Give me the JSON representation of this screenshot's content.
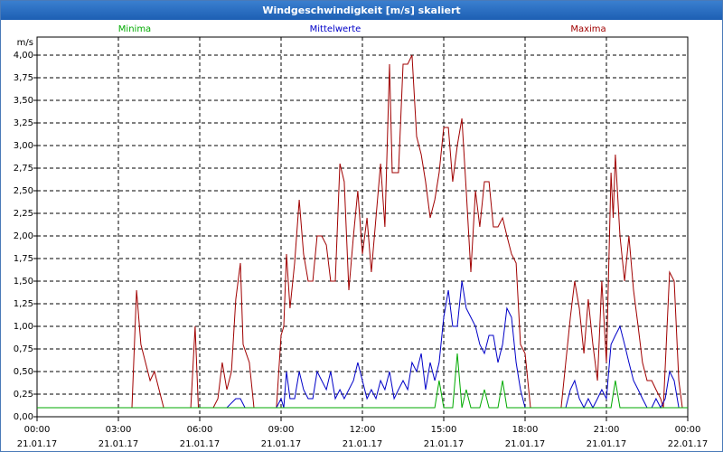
{
  "window": {
    "title": "Windgeschwindigkeit [m/s] skaliert"
  },
  "legend": [
    {
      "name": "Minima",
      "color": "#00aa00"
    },
    {
      "name": "Mittelwerte",
      "color": "#0000c8"
    },
    {
      "name": "Maxima",
      "color": "#a00000"
    }
  ],
  "chart_data": {
    "type": "line",
    "title": "Windgeschwindigkeit [m/s] skaliert",
    "ylabel": "m/s",
    "xlabel": "",
    "ylim": [
      0,
      4.0
    ],
    "xlim_hours": [
      0,
      24
    ],
    "grid": true,
    "legend_position": "top",
    "yticks": [
      "0,00",
      "0,25",
      "0,50",
      "0,75",
      "1,00",
      "1,25",
      "1,50",
      "1,75",
      "2,00",
      "2,25",
      "2,50",
      "2,75",
      "3,00",
      "3,25",
      "3,50",
      "3,75",
      "4,00"
    ],
    "xticks": [
      {
        "time": "00:00",
        "date": "21.01.17"
      },
      {
        "time": "03:00",
        "date": "21.01.17"
      },
      {
        "time": "06:00",
        "date": "21.01.17"
      },
      {
        "time": "09:00",
        "date": "21.01.17"
      },
      {
        "time": "12:00",
        "date": "21.01.17"
      },
      {
        "time": "15:00",
        "date": "21.01.17"
      },
      {
        "time": "18:00",
        "date": "21.01.17"
      },
      {
        "time": "21:00",
        "date": "21.01.17"
      },
      {
        "time": "00:00",
        "date": "22.01.17"
      }
    ],
    "series": [
      {
        "name": "Maxima",
        "color": "#a00000",
        "points": [
          [
            0,
            0.1
          ],
          [
            3.5,
            0.1
          ],
          [
            3.67,
            1.4
          ],
          [
            3.83,
            0.8
          ],
          [
            4.0,
            0.6
          ],
          [
            4.17,
            0.4
          ],
          [
            4.33,
            0.5
          ],
          [
            4.5,
            0.3
          ],
          [
            4.67,
            0.1
          ],
          [
            5.67,
            0.1
          ],
          [
            5.83,
            1.0
          ],
          [
            5.95,
            0.1
          ],
          [
            6.5,
            0.1
          ],
          [
            6.67,
            0.2
          ],
          [
            6.83,
            0.6
          ],
          [
            7.0,
            0.3
          ],
          [
            7.17,
            0.5
          ],
          [
            7.33,
            1.3
          ],
          [
            7.5,
            1.7
          ],
          [
            7.6,
            0.8
          ],
          [
            7.83,
            0.6
          ],
          [
            8.0,
            0.1
          ],
          [
            8.83,
            0.1
          ],
          [
            9.0,
            0.9
          ],
          [
            9.1,
            1.0
          ],
          [
            9.2,
            1.8
          ],
          [
            9.33,
            1.2
          ],
          [
            9.5,
            1.7
          ],
          [
            9.67,
            2.4
          ],
          [
            9.83,
            1.8
          ],
          [
            10.0,
            1.5
          ],
          [
            10.17,
            1.5
          ],
          [
            10.33,
            2.0
          ],
          [
            10.5,
            2.0
          ],
          [
            10.67,
            1.9
          ],
          [
            10.83,
            1.5
          ],
          [
            11.0,
            1.5
          ],
          [
            11.17,
            2.8
          ],
          [
            11.33,
            2.6
          ],
          [
            11.5,
            1.4
          ],
          [
            11.67,
            2.0
          ],
          [
            11.83,
            2.5
          ],
          [
            12.0,
            1.8
          ],
          [
            12.17,
            2.2
          ],
          [
            12.33,
            1.6
          ],
          [
            12.5,
            2.2
          ],
          [
            12.67,
            2.8
          ],
          [
            12.83,
            2.1
          ],
          [
            13.0,
            3.9
          ],
          [
            13.1,
            2.7
          ],
          [
            13.33,
            2.7
          ],
          [
            13.5,
            3.9
          ],
          [
            13.67,
            3.9
          ],
          [
            13.83,
            4.0
          ],
          [
            14.0,
            3.1
          ],
          [
            14.17,
            2.9
          ],
          [
            14.33,
            2.6
          ],
          [
            14.5,
            2.2
          ],
          [
            14.67,
            2.4
          ],
          [
            14.83,
            2.7
          ],
          [
            15.0,
            3.2
          ],
          [
            15.17,
            3.2
          ],
          [
            15.33,
            2.6
          ],
          [
            15.5,
            3.0
          ],
          [
            15.67,
            3.3
          ],
          [
            15.83,
            2.5
          ],
          [
            16.0,
            1.6
          ],
          [
            16.17,
            2.5
          ],
          [
            16.33,
            2.1
          ],
          [
            16.5,
            2.6
          ],
          [
            16.67,
            2.6
          ],
          [
            16.83,
            2.1
          ],
          [
            17.0,
            2.1
          ],
          [
            17.17,
            2.2
          ],
          [
            17.33,
            2.0
          ],
          [
            17.5,
            1.8
          ],
          [
            17.67,
            1.7
          ],
          [
            17.83,
            0.8
          ],
          [
            18.0,
            0.7
          ],
          [
            18.2,
            0.1
          ],
          [
            19.33,
            0.1
          ],
          [
            19.5,
            0.6
          ],
          [
            19.67,
            1.1
          ],
          [
            19.83,
            1.5
          ],
          [
            20.0,
            1.2
          ],
          [
            20.17,
            0.7
          ],
          [
            20.33,
            1.3
          ],
          [
            20.5,
            0.8
          ],
          [
            20.67,
            0.4
          ],
          [
            20.83,
            1.5
          ],
          [
            21.0,
            0.6
          ],
          [
            21.17,
            2.7
          ],
          [
            21.25,
            2.2
          ],
          [
            21.33,
            2.9
          ],
          [
            21.5,
            2.0
          ],
          [
            21.67,
            1.5
          ],
          [
            21.83,
            2.0
          ],
          [
            22.0,
            1.4
          ],
          [
            22.17,
            1.0
          ],
          [
            22.33,
            0.6
          ],
          [
            22.5,
            0.4
          ],
          [
            22.67,
            0.4
          ],
          [
            22.83,
            0.3
          ],
          [
            23.0,
            0.2
          ],
          [
            23.1,
            0.1
          ],
          [
            23.33,
            1.6
          ],
          [
            23.5,
            1.5
          ],
          [
            23.67,
            0.4
          ],
          [
            23.8,
            0.1
          ],
          [
            24.0,
            0.1
          ]
        ]
      },
      {
        "name": "Mittelwerte",
        "color": "#0000c8",
        "points": [
          [
            0,
            0.1
          ],
          [
            7.0,
            0.1
          ],
          [
            7.33,
            0.2
          ],
          [
            7.5,
            0.2
          ],
          [
            7.67,
            0.1
          ],
          [
            8.83,
            0.1
          ],
          [
            9.0,
            0.2
          ],
          [
            9.1,
            0.1
          ],
          [
            9.2,
            0.5
          ],
          [
            9.33,
            0.2
          ],
          [
            9.5,
            0.2
          ],
          [
            9.67,
            0.5
          ],
          [
            9.83,
            0.3
          ],
          [
            10.0,
            0.2
          ],
          [
            10.17,
            0.2
          ],
          [
            10.33,
            0.5
          ],
          [
            10.5,
            0.4
          ],
          [
            10.67,
            0.3
          ],
          [
            10.83,
            0.5
          ],
          [
            11.0,
            0.2
          ],
          [
            11.17,
            0.3
          ],
          [
            11.33,
            0.2
          ],
          [
            11.5,
            0.3
          ],
          [
            11.67,
            0.4
          ],
          [
            11.83,
            0.6
          ],
          [
            12.0,
            0.4
          ],
          [
            12.17,
            0.2
          ],
          [
            12.33,
            0.3
          ],
          [
            12.5,
            0.2
          ],
          [
            12.67,
            0.4
          ],
          [
            12.83,
            0.3
          ],
          [
            13.0,
            0.5
          ],
          [
            13.17,
            0.2
          ],
          [
            13.33,
            0.3
          ],
          [
            13.5,
            0.4
          ],
          [
            13.67,
            0.3
          ],
          [
            13.83,
            0.6
          ],
          [
            14.0,
            0.5
          ],
          [
            14.17,
            0.7
          ],
          [
            14.33,
            0.3
          ],
          [
            14.5,
            0.6
          ],
          [
            14.67,
            0.4
          ],
          [
            14.83,
            0.6
          ],
          [
            15.0,
            1.1
          ],
          [
            15.17,
            1.4
          ],
          [
            15.33,
            1.0
          ],
          [
            15.5,
            1.0
          ],
          [
            15.67,
            1.5
          ],
          [
            15.83,
            1.2
          ],
          [
            16.0,
            1.1
          ],
          [
            16.17,
            1.0
          ],
          [
            16.33,
            0.8
          ],
          [
            16.5,
            0.7
          ],
          [
            16.67,
            0.9
          ],
          [
            16.83,
            0.9
          ],
          [
            17.0,
            0.6
          ],
          [
            17.17,
            0.8
          ],
          [
            17.33,
            1.2
          ],
          [
            17.5,
            1.1
          ],
          [
            17.67,
            0.6
          ],
          [
            17.83,
            0.3
          ],
          [
            18.0,
            0.1
          ],
          [
            19.5,
            0.1
          ],
          [
            19.67,
            0.3
          ],
          [
            19.83,
            0.4
          ],
          [
            20.0,
            0.2
          ],
          [
            20.17,
            0.1
          ],
          [
            20.33,
            0.2
          ],
          [
            20.5,
            0.1
          ],
          [
            20.67,
            0.2
          ],
          [
            20.83,
            0.3
          ],
          [
            21.0,
            0.2
          ],
          [
            21.17,
            0.8
          ],
          [
            21.33,
            0.9
          ],
          [
            21.5,
            1.0
          ],
          [
            21.67,
            0.8
          ],
          [
            21.83,
            0.6
          ],
          [
            22.0,
            0.4
          ],
          [
            22.17,
            0.3
          ],
          [
            22.33,
            0.2
          ],
          [
            22.5,
            0.1
          ],
          [
            22.67,
            0.1
          ],
          [
            22.83,
            0.2
          ],
          [
            23.0,
            0.1
          ],
          [
            23.17,
            0.2
          ],
          [
            23.33,
            0.5
          ],
          [
            23.5,
            0.4
          ],
          [
            23.67,
            0.1
          ],
          [
            24.0,
            0.1
          ]
        ]
      },
      {
        "name": "Minima",
        "color": "#00aa00",
        "points": [
          [
            0,
            0.1
          ],
          [
            14.67,
            0.1
          ],
          [
            14.83,
            0.4
          ],
          [
            15.0,
            0.1
          ],
          [
            15.33,
            0.1
          ],
          [
            15.5,
            0.7
          ],
          [
            15.67,
            0.1
          ],
          [
            15.83,
            0.3
          ],
          [
            16.0,
            0.1
          ],
          [
            16.33,
            0.1
          ],
          [
            16.5,
            0.3
          ],
          [
            16.67,
            0.1
          ],
          [
            17.0,
            0.1
          ],
          [
            17.17,
            0.4
          ],
          [
            17.33,
            0.1
          ],
          [
            21.17,
            0.1
          ],
          [
            21.33,
            0.4
          ],
          [
            21.5,
            0.1
          ],
          [
            24.0,
            0.1
          ]
        ]
      }
    ]
  }
}
